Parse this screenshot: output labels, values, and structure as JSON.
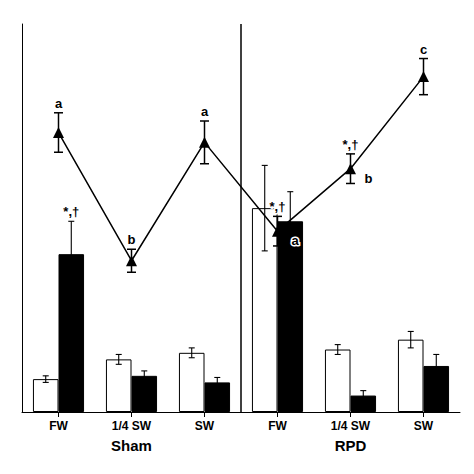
{
  "chart_data": {
    "type": "bar",
    "categories": [
      "FW",
      "1/4 SW",
      "SW",
      "FW",
      "1/4 SW",
      "SW"
    ],
    "category_groups": [
      "Sham",
      "Sham",
      "Sham",
      "RPD",
      "RPD",
      "RPD"
    ],
    "ylim": [
      0.0,
      1.18
    ],
    "grid": false,
    "tick_labels": "x",
    "series": [
      {
        "type": "bar",
        "color": "#ffffff",
        "values": [
          0.1,
          0.16,
          0.18,
          0.62,
          0.19,
          0.22
        ],
        "errors": [
          0.01,
          0.015,
          0.015,
          0.13,
          0.015,
          0.025
        ]
      },
      {
        "type": "bar",
        "color": "#000000",
        "values": [
          0.48,
          0.11,
          0.09,
          0.58,
          0.05,
          0.14
        ],
        "errors": [
          0.1,
          0.015,
          0.015,
          0.09,
          0.015,
          0.035
        ],
        "annotations": [
          [
            "*,†"
          ],
          null,
          null,
          null,
          null,
          null
        ]
      },
      {
        "type": "line",
        "color": "#000000",
        "marker": "triangle",
        "line_style": "solid",
        "values": [
          0.85,
          0.46,
          0.82,
          0.55,
          0.74,
          1.02
        ],
        "errors": [
          0.06,
          0.035,
          0.065,
          0.045,
          0.045,
          0.055
        ],
        "annotations": [
          [
            "a"
          ],
          [
            "b"
          ],
          [
            "a"
          ],
          [
            "*,†",
            "a"
          ],
          [
            "*,†",
            "b"
          ],
          [
            "c"
          ]
        ]
      }
    ]
  }
}
